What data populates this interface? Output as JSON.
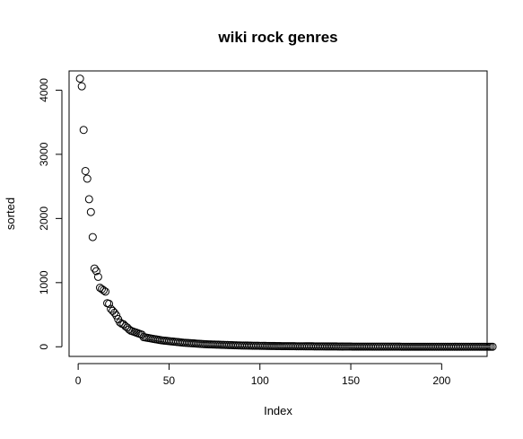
{
  "chart_data": {
    "type": "scatter",
    "title": "wiki rock genres",
    "xlabel": "Index",
    "ylabel": "sorted",
    "xlim": [
      -5,
      225
    ],
    "ylim": [
      -150,
      4300
    ],
    "x_ticks": [
      0,
      50,
      100,
      150,
      200
    ],
    "y_ticks": [
      0,
      1000,
      2000,
      3000,
      4000
    ],
    "grid": false,
    "legend": "none",
    "marker": "open-circle",
    "color": "#000000",
    "series": [
      {
        "values": [
          4180,
          4060,
          3380,
          2740,
          2620,
          2300,
          2100,
          1710,
          1220,
          1180,
          1090,
          920,
          900,
          880,
          860,
          680,
          670,
          590,
          560,
          530,
          490,
          430,
          380,
          360,
          350,
          320,
          300,
          270,
          250,
          240,
          230,
          220,
          210,
          200,
          190,
          150,
          145,
          140,
          135,
          130,
          125,
          120,
          115,
          110,
          105,
          100,
          97,
          94,
          91,
          88,
          85,
          82,
          79,
          76,
          73,
          70,
          67,
          64,
          62,
          60,
          58,
          56,
          54,
          52,
          50,
          48,
          46,
          44,
          42,
          40,
          39,
          38,
          37,
          36,
          35,
          34,
          33,
          32,
          31,
          30,
          29,
          28,
          27,
          26,
          25,
          24,
          23,
          22,
          21,
          20,
          20,
          19,
          19,
          18,
          18,
          17,
          17,
          16,
          16,
          15,
          15,
          14,
          14,
          13,
          13,
          12,
          12,
          12,
          11,
          11,
          11,
          10,
          10,
          10,
          10,
          9,
          9,
          9,
          9,
          8,
          8,
          8,
          8,
          8,
          7,
          7,
          7,
          7,
          7,
          6,
          6,
          6,
          6,
          6,
          6,
          5,
          5,
          5,
          5,
          5,
          5,
          5,
          4,
          4,
          4,
          4,
          4,
          4,
          4,
          4,
          3,
          3,
          3,
          3,
          3,
          3,
          3,
          3,
          3,
          3,
          3,
          2,
          2,
          2,
          2,
          2,
          2,
          2,
          2,
          2,
          2,
          2,
          2,
          2,
          2,
          2,
          2,
          1,
          1,
          1,
          1,
          1,
          1,
          1,
          1,
          1,
          1,
          1,
          1,
          1,
          1,
          1,
          1,
          1,
          1,
          1,
          1,
          1,
          1,
          1,
          1,
          1,
          1,
          1,
          1,
          1,
          1,
          1,
          1,
          1,
          1,
          1,
          1,
          1,
          1,
          1,
          1,
          1,
          1,
          1,
          1,
          1,
          1,
          1,
          1,
          1,
          1,
          1
        ]
      }
    ]
  }
}
